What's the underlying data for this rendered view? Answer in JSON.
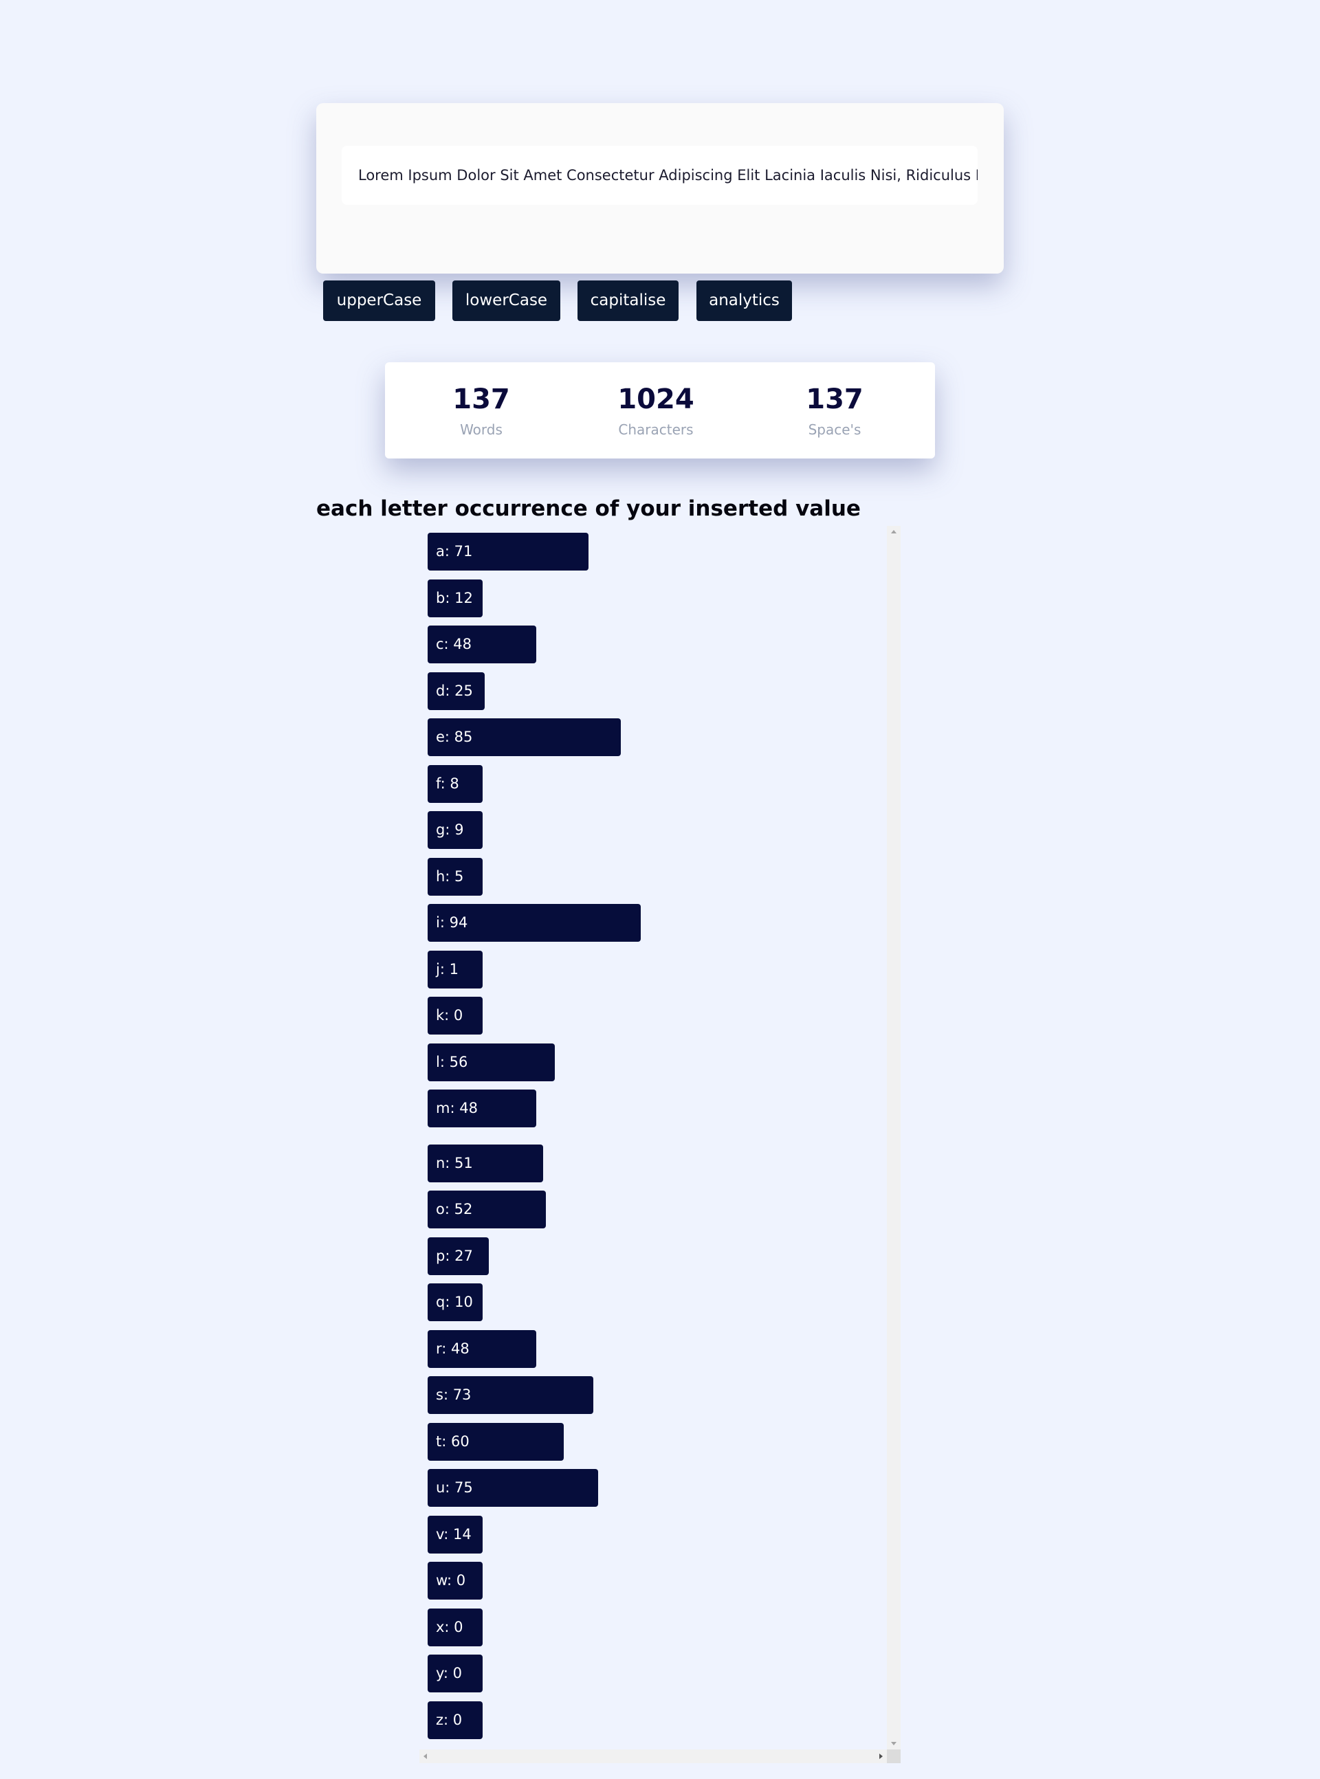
{
  "editor": {
    "text": "Lorem Ipsum Dolor Sit Amet Consectetur Adipiscing Elit Lacinia Iaculis Nisi, Ridiculus Neq"
  },
  "toolbar": {
    "buttons": [
      {
        "label": "upperCase"
      },
      {
        "label": "lowerCase"
      },
      {
        "label": "capitalise"
      },
      {
        "label": "analytics"
      }
    ]
  },
  "stats": {
    "words": {
      "value": "137",
      "label": "Words"
    },
    "characters": {
      "value": "1024",
      "label": "Characters"
    },
    "spaces": {
      "value": "137",
      "label": "Space's"
    }
  },
  "occurrences": {
    "title": "each letter occurrence of your inserted value",
    "letters": [
      {
        "label": "a: 71",
        "count": 71
      },
      {
        "label": "b: 12",
        "count": 12
      },
      {
        "label": "c: 48",
        "count": 48
      },
      {
        "label": "d: 25",
        "count": 25
      },
      {
        "label": "e: 85",
        "count": 85
      },
      {
        "label": "f: 8",
        "count": 8
      },
      {
        "label": "g: 9",
        "count": 9
      },
      {
        "label": "h: 5",
        "count": 5
      },
      {
        "label": "i: 94",
        "count": 94
      },
      {
        "label": "j: 1",
        "count": 1
      },
      {
        "label": "k: 0",
        "count": 0
      },
      {
        "label": "l: 56",
        "count": 56
      },
      {
        "label": "m: 48",
        "count": 48
      },
      {
        "label": "n: 51",
        "count": 51
      },
      {
        "label": "o: 52",
        "count": 52
      },
      {
        "label": "p: 27",
        "count": 27
      },
      {
        "label": "q: 10",
        "count": 10
      },
      {
        "label": "r: 48",
        "count": 48
      },
      {
        "label": "s: 73",
        "count": 73
      },
      {
        "label": "t: 60",
        "count": 60
      },
      {
        "label": "u: 75",
        "count": 75
      },
      {
        "label": "v: 14",
        "count": 14
      },
      {
        "label": "w: 0",
        "count": 0
      },
      {
        "label": "x: 0",
        "count": 0
      },
      {
        "label": "y: 0",
        "count": 0
      },
      {
        "label": "z: 0",
        "count": 0
      }
    ]
  },
  "colors": {
    "page_background": "#eff3fe",
    "button_background": "#0b1a33",
    "bar_background": "#060d3b",
    "stat_value": "#0b0b3b",
    "stat_label": "#9aa3b4"
  }
}
